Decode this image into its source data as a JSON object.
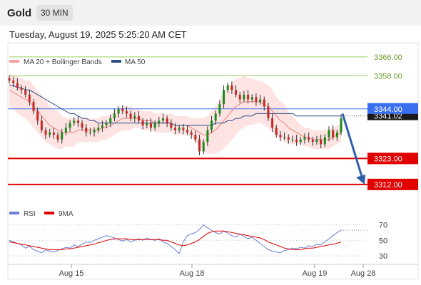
{
  "header": {
    "symbol": "Gold",
    "timeframe": "30 MIN"
  },
  "timestamp": "Tuesday, August 19, 2025 5:25:20 AM CET",
  "chart_data": [
    {
      "type": "candlestick",
      "legend": [
        {
          "label": "MA 20 + Bollinger Bands",
          "color": "#f2a0a0"
        },
        {
          "label": "MA 50",
          "color": "#2c4f8a"
        }
      ],
      "y_range": [
        3302,
        3372
      ],
      "levels": [
        {
          "value": 3366,
          "label": "3366.00",
          "kind": "resistance",
          "color": "#9acd5a"
        },
        {
          "value": 3358,
          "label": "3358.00",
          "kind": "resistance",
          "color": "#9acd5a"
        },
        {
          "value": 3344,
          "label": "3344.00",
          "kind": "current",
          "color": "#3b6ff0"
        },
        {
          "value": 3323,
          "label": "3323.00",
          "kind": "support",
          "color": "#e00000"
        },
        {
          "value": 3312,
          "label": "3312.00",
          "kind": "support",
          "color": "#e00000"
        }
      ],
      "last_price": {
        "value": 3341.02,
        "label": "3341.02"
      },
      "forecast_arrow": {
        "from": 3342,
        "to": 3312
      },
      "close_series": [
        3356,
        3355,
        3353,
        3352,
        3350,
        3347,
        3343,
        3339,
        3335,
        3333,
        3334,
        3333,
        3331,
        3334,
        3336,
        3338,
        3339,
        3338,
        3336,
        3334,
        3334,
        3335,
        3336,
        3337,
        3338,
        3340,
        3342,
        3344,
        3343,
        3342,
        3340,
        3341,
        3339,
        3337,
        3338,
        3336,
        3338,
        3339,
        3340,
        3338,
        3336,
        3335,
        3336,
        3335,
        3334,
        3333,
        3331,
        3326,
        3330,
        3335,
        3339,
        3342,
        3346,
        3352,
        3354,
        3352,
        3350,
        3348,
        3350,
        3348,
        3349,
        3347,
        3348,
        3345,
        3340,
        3336,
        3333,
        3332,
        3332,
        3331,
        3331,
        3330,
        3331,
        3332,
        3331,
        3330,
        3331,
        3329,
        3332,
        3335,
        3332,
        3334,
        3340
      ],
      "ma20": [
        3352,
        3351,
        3350,
        3349,
        3348,
        3347,
        3345,
        3343,
        3341,
        3339,
        3337,
        3336,
        3335,
        3334,
        3334,
        3334,
        3334,
        3335,
        3335,
        3335,
        3335,
        3335,
        3335,
        3336,
        3336,
        3337,
        3338,
        3339,
        3340,
        3340,
        3340,
        3340,
        3340,
        3339,
        3339,
        3339,
        3338,
        3338,
        3338,
        3338,
        3338,
        3337,
        3337,
        3337,
        3337,
        3336,
        3335,
        3334,
        3333,
        3333,
        3334,
        3335,
        3337,
        3339,
        3341,
        3343,
        3345,
        3346,
        3347,
        3347,
        3347,
        3347,
        3347,
        3346,
        3345,
        3343,
        3341,
        3339,
        3338,
        3336,
        3335,
        3334,
        3333,
        3332,
        3332,
        3331,
        3331,
        3331,
        3331,
        3331,
        3332,
        3333,
        3334
      ],
      "bollinger_width": [
        7,
        7,
        8,
        8,
        8,
        9,
        9,
        9,
        9,
        9,
        8,
        8,
        8,
        7,
        6,
        6,
        6,
        5,
        5,
        5,
        5,
        5,
        5,
        5,
        5,
        5,
        5,
        5,
        5,
        5,
        5,
        4,
        4,
        4,
        4,
        4,
        4,
        4,
        4,
        4,
        4,
        4,
        4,
        4,
        4,
        4,
        5,
        6,
        7,
        8,
        9,
        10,
        11,
        12,
        12,
        12,
        12,
        11,
        11,
        10,
        10,
        9,
        9,
        9,
        9,
        9,
        8,
        8,
        8,
        7,
        6,
        5,
        4,
        4,
        4,
        4,
        4,
        4,
        4,
        4,
        4,
        4,
        4
      ],
      "ma50": [
        3354,
        3354,
        3353,
        3353,
        3352,
        3352,
        3351,
        3350,
        3349,
        3348,
        3347,
        3346,
        3345,
        3344,
        3343,
        3342,
        3342,
        3341,
        3340,
        3340,
        3339,
        3339,
        3338,
        3338,
        3338,
        3338,
        3338,
        3338,
        3338,
        3338,
        3338,
        3338,
        3338,
        3338,
        3338,
        3338,
        3338,
        3338,
        3338,
        3338,
        3338,
        3337,
        3337,
        3337,
        3337,
        3337,
        3337,
        3337,
        3337,
        3337,
        3337,
        3338,
        3338,
        3338,
        3339,
        3339,
        3340,
        3340,
        3341,
        3341,
        3341,
        3342,
        3342,
        3342,
        3342,
        3342,
        3342,
        3342,
        3342,
        3342,
        3342,
        3341,
        3341,
        3341,
        3341,
        3341,
        3341,
        3341,
        3341,
        3341,
        3341,
        3341,
        3341
      ]
    },
    {
      "type": "line",
      "legend": [
        {
          "label": "RSI",
          "color": "#6b7fd6"
        },
        {
          "label": "9MA",
          "color": "#e00000"
        }
      ],
      "y_range": [
        20,
        75
      ],
      "yticks": [
        {
          "value": 70,
          "label": "70"
        },
        {
          "value": 50,
          "label": "50"
        },
        {
          "value": 30,
          "label": "30"
        }
      ],
      "rsi": [
        50,
        48,
        46,
        44,
        40,
        42,
        38,
        36,
        34,
        38,
        36,
        35,
        37,
        39,
        41,
        40,
        44,
        42,
        45,
        48,
        47,
        50,
        52,
        54,
        56,
        55,
        53,
        51,
        49,
        51,
        48,
        50,
        52,
        50,
        53,
        51,
        50,
        52,
        48,
        46,
        42,
        38,
        33,
        48,
        56,
        58,
        60,
        64,
        70,
        66,
        63,
        60,
        58,
        62,
        59,
        56,
        54,
        58,
        55,
        52,
        54,
        50,
        46,
        42,
        38,
        36,
        35,
        34,
        37,
        38,
        40,
        39,
        41,
        40,
        43,
        42,
        45,
        44,
        48,
        52,
        56,
        60,
        63
      ],
      "ma9": [
        48,
        47,
        46,
        45,
        44,
        43,
        42,
        41,
        40,
        39,
        38,
        38,
        38,
        38,
        39,
        39,
        40,
        41,
        42,
        43,
        44,
        45,
        47,
        48,
        50,
        51,
        52,
        52,
        52,
        52,
        51,
        51,
        51,
        51,
        51,
        51,
        51,
        51,
        50,
        50,
        48,
        46,
        44,
        43,
        44,
        46,
        48,
        51,
        55,
        59,
        61,
        62,
        62,
        62,
        61,
        60,
        59,
        58,
        57,
        56,
        55,
        54,
        53,
        51,
        48,
        46,
        44,
        42,
        40,
        39,
        38,
        38,
        38,
        39,
        40,
        40,
        41,
        42,
        43,
        44,
        45,
        46,
        48
      ],
      "x_ticks": [
        "Aug 15",
        "Aug 18",
        "Aug 19",
        "Aug 28"
      ]
    }
  ]
}
